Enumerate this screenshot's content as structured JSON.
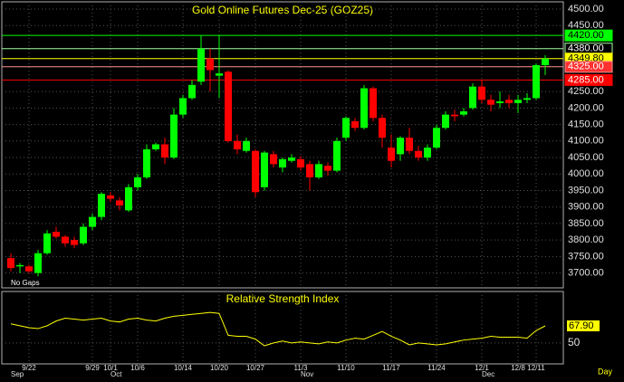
{
  "chart_data": {
    "type": "candlestick",
    "title": "Gold Online Futures Dec-25 (GOZ25)",
    "up_color": "#00ff00",
    "down_color": "#ff0000",
    "ylim": [
      3655,
      4522
    ],
    "yticks": [
      {
        "value": 4500,
        "label": "4500.00"
      },
      {
        "value": 4450,
        "label": "4450.00"
      },
      {
        "value": 4250,
        "label": "4250.00"
      },
      {
        "value": 4200,
        "label": "4200.00"
      },
      {
        "value": 4150,
        "label": "4150.00"
      },
      {
        "value": 4100,
        "label": "4100.00"
      },
      {
        "value": 4050,
        "label": "4050.00"
      },
      {
        "value": 4000,
        "label": "4000.00"
      },
      {
        "value": 3950,
        "label": "3950.00"
      },
      {
        "value": 3900,
        "label": "3900.00"
      },
      {
        "value": 3850,
        "label": "3850.00"
      },
      {
        "value": 3800,
        "label": "3800.00"
      },
      {
        "value": 3750,
        "label": "3750.00"
      },
      {
        "value": 3700,
        "label": "3700.00"
      }
    ],
    "grid": true,
    "levels": [
      {
        "value": 4420,
        "label": "4420.00",
        "color": "#00ff00",
        "label_bg": "#00ff00",
        "label_color": "#000000"
      },
      {
        "value": 4380,
        "label": "4380.00",
        "color": "#a0ffa0",
        "label_bg": "#000000",
        "label_color": "#ffffff"
      },
      {
        "value": 4349.8,
        "label": "4349.80",
        "color": "#ffff00",
        "label_bg": "#ffff00",
        "label_color": "#000000"
      },
      {
        "value": 4325,
        "label": "4325.00",
        "color": "#ff9090",
        "label_bg": "#ff3030",
        "label_color": "#ffffff"
      },
      {
        "value": 4285,
        "label": "4285.00",
        "color": "#ff0000",
        "label_bg": "#ff0000",
        "label_color": "#ffffff"
      }
    ],
    "note": "No Gaps",
    "x_unit": "Day",
    "categories": [
      null,
      null,
      "9/22",
      null,
      null,
      null,
      null,
      null,
      null,
      "9/29",
      null,
      "10/1",
      null,
      null,
      "10/6",
      null,
      null,
      null,
      null,
      "10/14",
      null,
      null,
      null,
      "10/20",
      null,
      null,
      null,
      "10/27",
      null,
      null,
      null,
      null,
      "11/3",
      null,
      null,
      null,
      null,
      "11/10",
      null,
      null,
      null,
      null,
      "11/17",
      null,
      null,
      null,
      null,
      "11/24",
      null,
      null,
      null,
      null,
      "12/1",
      null,
      null,
      null,
      "12/8",
      null,
      "12/11",
      null
    ],
    "month_categories": [
      "Sep",
      null,
      null,
      null,
      null,
      null,
      null,
      null,
      null,
      null,
      null,
      "Oct",
      null,
      null,
      null,
      null,
      null,
      null,
      null,
      null,
      null,
      null,
      null,
      null,
      null,
      null,
      null,
      null,
      null,
      null,
      null,
      null,
      "Nov",
      null,
      null,
      null,
      null,
      null,
      null,
      null,
      null,
      null,
      null,
      null,
      null,
      null,
      null,
      null,
      null,
      null,
      null,
      null,
      "Dec",
      null,
      null,
      null,
      null,
      null,
      null,
      null
    ],
    "candles": [
      {
        "open": 3745,
        "high": 3760,
        "low": 3705,
        "close": 3715
      },
      {
        "open": 3720,
        "high": 3730,
        "low": 3700,
        "close": 3724
      },
      {
        "open": 3720,
        "high": 3725,
        "low": 3700,
        "close": 3705
      },
      {
        "open": 3700,
        "high": 3770,
        "low": 3690,
        "close": 3760
      },
      {
        "open": 3760,
        "high": 3830,
        "low": 3755,
        "close": 3820
      },
      {
        "open": 3825,
        "high": 3840,
        "low": 3805,
        "close": 3810
      },
      {
        "open": 3810,
        "high": 3815,
        "low": 3780,
        "close": 3790
      },
      {
        "open": 3800,
        "high": 3810,
        "low": 3775,
        "close": 3785
      },
      {
        "open": 3790,
        "high": 3850,
        "low": 3785,
        "close": 3840
      },
      {
        "open": 3840,
        "high": 3880,
        "low": 3830,
        "close": 3870
      },
      {
        "open": 3870,
        "high": 3945,
        "low": 3860,
        "close": 3940
      },
      {
        "open": 3935,
        "high": 3945,
        "low": 3915,
        "close": 3925
      },
      {
        "open": 3920,
        "high": 3930,
        "low": 3890,
        "close": 3905
      },
      {
        "open": 3890,
        "high": 3970,
        "low": 3885,
        "close": 3960
      },
      {
        "open": 3960,
        "high": 4000,
        "low": 3950,
        "close": 3990
      },
      {
        "open": 3990,
        "high": 4090,
        "low": 3985,
        "close": 4075
      },
      {
        "open": 4075,
        "high": 4095,
        "low": 4070,
        "close": 4090
      },
      {
        "open": 4090,
        "high": 4110,
        "low": 4030,
        "close": 4050
      },
      {
        "open": 4050,
        "high": 4200,
        "low": 4045,
        "close": 4180
      },
      {
        "open": 4180,
        "high": 4240,
        "low": 4170,
        "close": 4230
      },
      {
        "open": 4230,
        "high": 4285,
        "low": 4225,
        "close": 4270
      },
      {
        "open": 4280,
        "high": 4420,
        "low": 4270,
        "close": 4380
      },
      {
        "open": 4350,
        "high": 4380,
        "low": 4250,
        "close": 4315
      },
      {
        "open": 4298,
        "high": 4420,
        "low": 4230,
        "close": 4305
      },
      {
        "open": 4310,
        "high": 4315,
        "low": 4095,
        "close": 4100
      },
      {
        "open": 4100,
        "high": 4120,
        "low": 4060,
        "close": 4075
      },
      {
        "open": 4070,
        "high": 4110,
        "low": 4065,
        "close": 4100
      },
      {
        "open": 4070,
        "high": 4075,
        "low": 3930,
        "close": 3945
      },
      {
        "open": 3960,
        "high": 4070,
        "low": 3950,
        "close": 4065
      },
      {
        "open": 4060,
        "high": 4070,
        "low": 4020,
        "close": 4030
      },
      {
        "open": 4020,
        "high": 4050,
        "low": 4005,
        "close": 4045
      },
      {
        "open": 4040,
        "high": 4060,
        "low": 4035,
        "close": 4050
      },
      {
        "open": 4045,
        "high": 4055,
        "low": 4010,
        "close": 4020
      },
      {
        "open": 4030,
        "high": 4040,
        "low": 3950,
        "close": 3990
      },
      {
        "open": 3990,
        "high": 4040,
        "low": 3985,
        "close": 4030
      },
      {
        "open": 4025,
        "high": 4035,
        "low": 3995,
        "close": 4010
      },
      {
        "open": 4010,
        "high": 4110,
        "low": 4005,
        "close": 4100
      },
      {
        "open": 4110,
        "high": 4175,
        "low": 4100,
        "close": 4170
      },
      {
        "open": 4160,
        "high": 4170,
        "low": 4130,
        "close": 4140
      },
      {
        "open": 4140,
        "high": 4270,
        "low": 4135,
        "close": 4260
      },
      {
        "open": 4260,
        "high": 4265,
        "low": 4160,
        "close": 4170
      },
      {
        "open": 4170,
        "high": 4180,
        "low": 4080,
        "close": 4110
      },
      {
        "open": 4080,
        "high": 4120,
        "low": 4020,
        "close": 4040
      },
      {
        "open": 4060,
        "high": 4115,
        "low": 4040,
        "close": 4110
      },
      {
        "open": 4110,
        "high": 4140,
        "low": 4060,
        "close": 4070
      },
      {
        "open": 4070,
        "high": 4085,
        "low": 4040,
        "close": 4050
      },
      {
        "open": 4050,
        "high": 4090,
        "low": 4040,
        "close": 4080
      },
      {
        "open": 4080,
        "high": 4150,
        "low": 4075,
        "close": 4140
      },
      {
        "open": 4140,
        "high": 4190,
        "low": 4135,
        "close": 4180
      },
      {
        "open": 4180,
        "high": 4195,
        "low": 4160,
        "close": 4175
      },
      {
        "open": 4180,
        "high": 4200,
        "low": 4175,
        "close": 4190
      },
      {
        "open": 4200,
        "high": 4275,
        "low": 4195,
        "close": 4265
      },
      {
        "open": 4265,
        "high": 4285,
        "low": 4215,
        "close": 4225
      },
      {
        "open": 4225,
        "high": 4240,
        "low": 4190,
        "close": 4210
      },
      {
        "open": 4215,
        "high": 4250,
        "low": 4200,
        "close": 4220
      },
      {
        "open": 4225,
        "high": 4240,
        "low": 4200,
        "close": 4215
      },
      {
        "open": 4215,
        "high": 4240,
        "low": 4185,
        "close": 4225
      },
      {
        "open": 4225,
        "high": 4245,
        "low": 4215,
        "close": 4230
      },
      {
        "open": 4230,
        "high": 4335,
        "low": 4225,
        "close": 4330
      },
      {
        "open": 4330,
        "high": 4360,
        "low": 4300,
        "close": 4349.8
      }
    ],
    "rsi": {
      "title": "Relative Strength Index",
      "color": "#ffff00",
      "ylim": [
        28,
        104
      ],
      "yticks": [
        50
      ],
      "values": [
        70,
        68,
        66,
        65,
        68,
        73,
        76,
        75,
        74,
        75,
        76,
        73,
        72,
        75,
        76,
        74,
        73,
        76,
        78,
        79,
        80,
        81,
        82,
        81,
        58,
        57,
        57,
        54,
        47,
        50,
        52,
        50,
        51,
        50,
        49,
        51,
        50,
        53,
        55,
        54,
        58,
        62,
        57,
        53,
        48,
        50,
        49,
        48,
        49,
        51,
        53,
        54,
        55,
        57,
        56,
        56,
        56,
        55,
        63,
        67.9
      ],
      "value_labels": [
        null,
        null,
        null,
        null,
        null,
        null,
        null,
        null,
        null,
        null,
        null,
        null,
        null,
        null,
        null,
        null,
        null,
        null,
        null,
        null,
        null,
        null,
        null,
        null,
        null,
        null,
        null,
        null,
        null,
        null,
        null,
        null,
        null,
        null,
        null,
        null,
        null,
        null,
        null,
        null,
        null,
        null,
        null,
        null,
        null,
        null,
        null,
        null,
        null,
        null,
        null,
        null,
        null,
        null,
        null,
        null,
        null,
        null,
        null,
        "67.90"
      ]
    }
  }
}
